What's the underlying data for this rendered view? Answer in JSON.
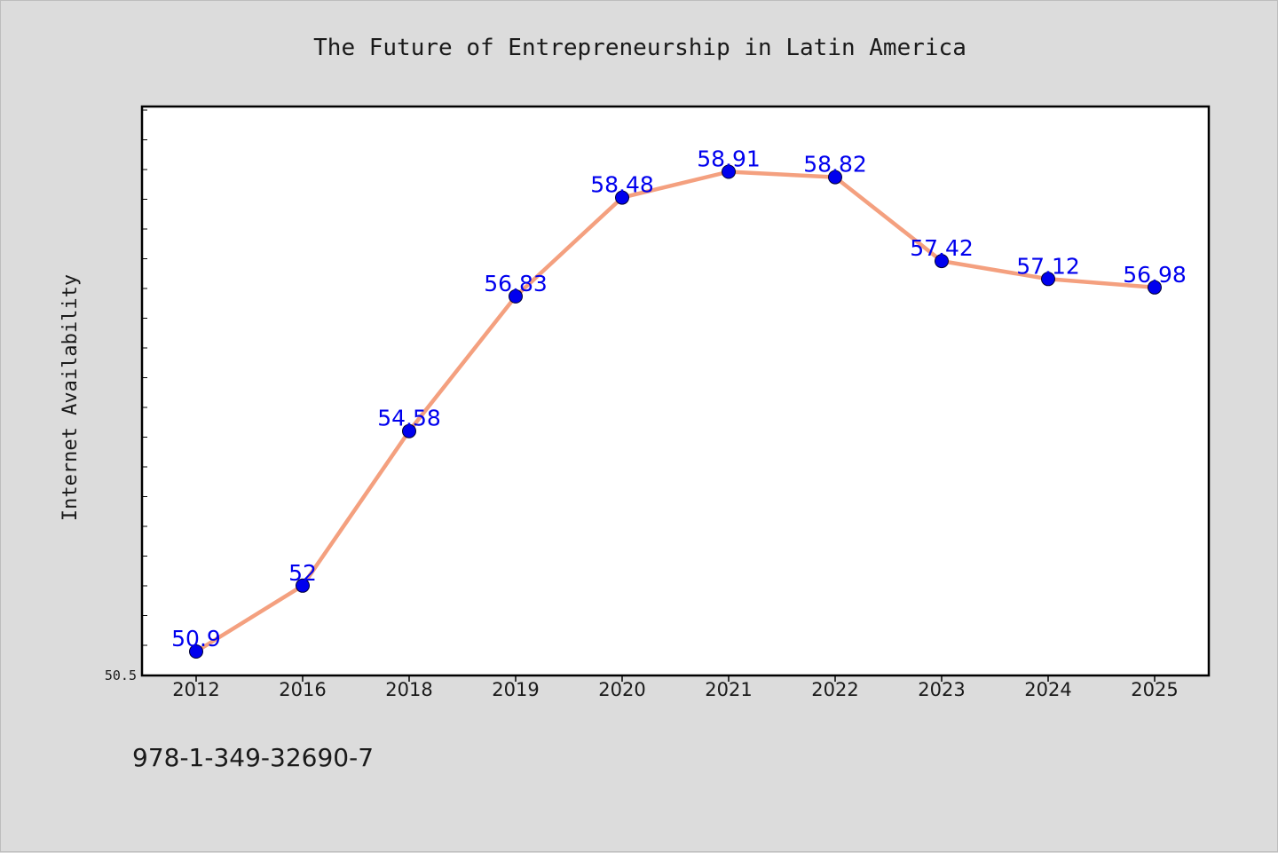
{
  "chart_data": {
    "type": "line",
    "title": "The Future of Entrepreneurship in Latin America",
    "xlabel": "",
    "ylabel": "Internet Availability",
    "categories": [
      "2012",
      "2016",
      "2018",
      "2019",
      "2020",
      "2021",
      "2022",
      "2023",
      "2024",
      "2025"
    ],
    "series": [
      {
        "values": [
          50.9,
          52.0,
          54.58,
          56.83,
          58.48,
          58.91,
          58.82,
          57.42,
          57.12,
          56.98
        ],
        "data_labels": [
          "50.9",
          "52",
          "54.58",
          "56.83",
          "58.48",
          "58.91",
          "58.82",
          "57.42",
          "57.12",
          "56.98"
        ]
      }
    ],
    "ylim": [
      50.5,
      60.0
    ],
    "y_tick_labels": [
      "50.5"
    ],
    "grid": false,
    "line_color": "#f4a07f",
    "marker_color": "#0000ee",
    "label_color": "#0000ee"
  },
  "footer": {
    "isbn": "978-1-349-32690-7"
  }
}
